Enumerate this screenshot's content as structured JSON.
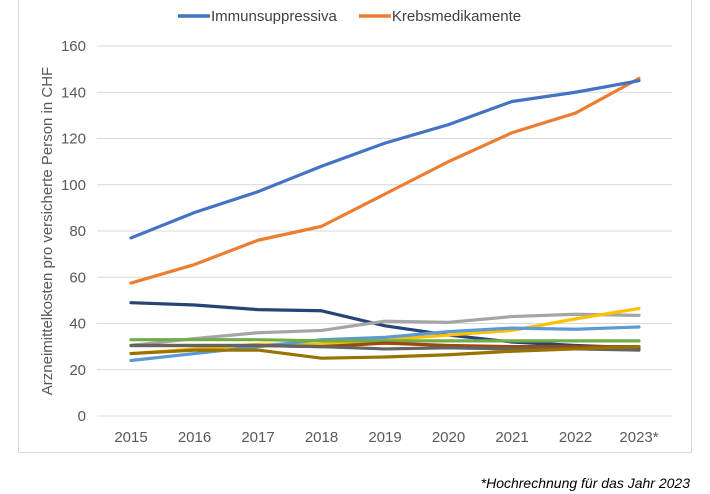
{
  "chart_data": {
    "type": "line",
    "title": "",
    "xlabel": "",
    "ylabel": "Arzneimittelkosten pro versicherte Person in CHF",
    "ylim": [
      0,
      160
    ],
    "yticks": [
      0,
      20,
      40,
      60,
      80,
      100,
      120,
      140,
      160
    ],
    "categories": [
      "2015",
      "2016",
      "2017",
      "2018",
      "2019",
      "2020",
      "2021",
      "2022",
      "2023*"
    ],
    "grid": true,
    "legend_position": "top-center",
    "series": [
      {
        "name": "Immunsuppressiva",
        "in_legend": true,
        "color": "#4472c4",
        "values": [
          77,
          88,
          97,
          108,
          118,
          126,
          136,
          140,
          145
        ]
      },
      {
        "name": "Krebsmedikamente",
        "in_legend": true,
        "color": "#ed7d31",
        "values": [
          57.5,
          65.5,
          76,
          82,
          96,
          110,
          122.5,
          131,
          146
        ]
      },
      {
        "name": "",
        "in_legend": false,
        "color": "#264478",
        "values": [
          49,
          48,
          46,
          45.5,
          39,
          35,
          32,
          30.5,
          29.5
        ]
      },
      {
        "name": "",
        "in_legend": false,
        "color": "#a5a5a5",
        "values": [
          30.5,
          33.5,
          36,
          37,
          41,
          40.5,
          43,
          44,
          43.5
        ]
      },
      {
        "name": "",
        "in_legend": false,
        "color": "#ffc000",
        "values": [
          27,
          29,
          31,
          31,
          33,
          35,
          37,
          42,
          46.5
        ]
      },
      {
        "name": "",
        "in_legend": false,
        "color": "#5b9bd5",
        "values": [
          24,
          27,
          30,
          33,
          34,
          36.5,
          38,
          37.5,
          38.5
        ]
      },
      {
        "name": "",
        "in_legend": false,
        "color": "#70ad47",
        "values": [
          33,
          33,
          33,
          32.5,
          32.5,
          32.5,
          32.5,
          32.5,
          32.5
        ]
      },
      {
        "name": "",
        "in_legend": false,
        "color": "#9e480e",
        "values": [
          30.5,
          30.5,
          30.5,
          30,
          31.5,
          30.5,
          30,
          30,
          30
        ]
      },
      {
        "name": "",
        "in_legend": false,
        "color": "#636363",
        "values": [
          30.5,
          30.5,
          30.5,
          30,
          29,
          29.5,
          29,
          29,
          28.5
        ]
      },
      {
        "name": "",
        "in_legend": false,
        "color": "#997300",
        "values": [
          27,
          28.5,
          28.5,
          25,
          25.5,
          26.5,
          28,
          29,
          30
        ]
      }
    ]
  },
  "footnote": "*Hochrechnung für das Jahr 2023"
}
